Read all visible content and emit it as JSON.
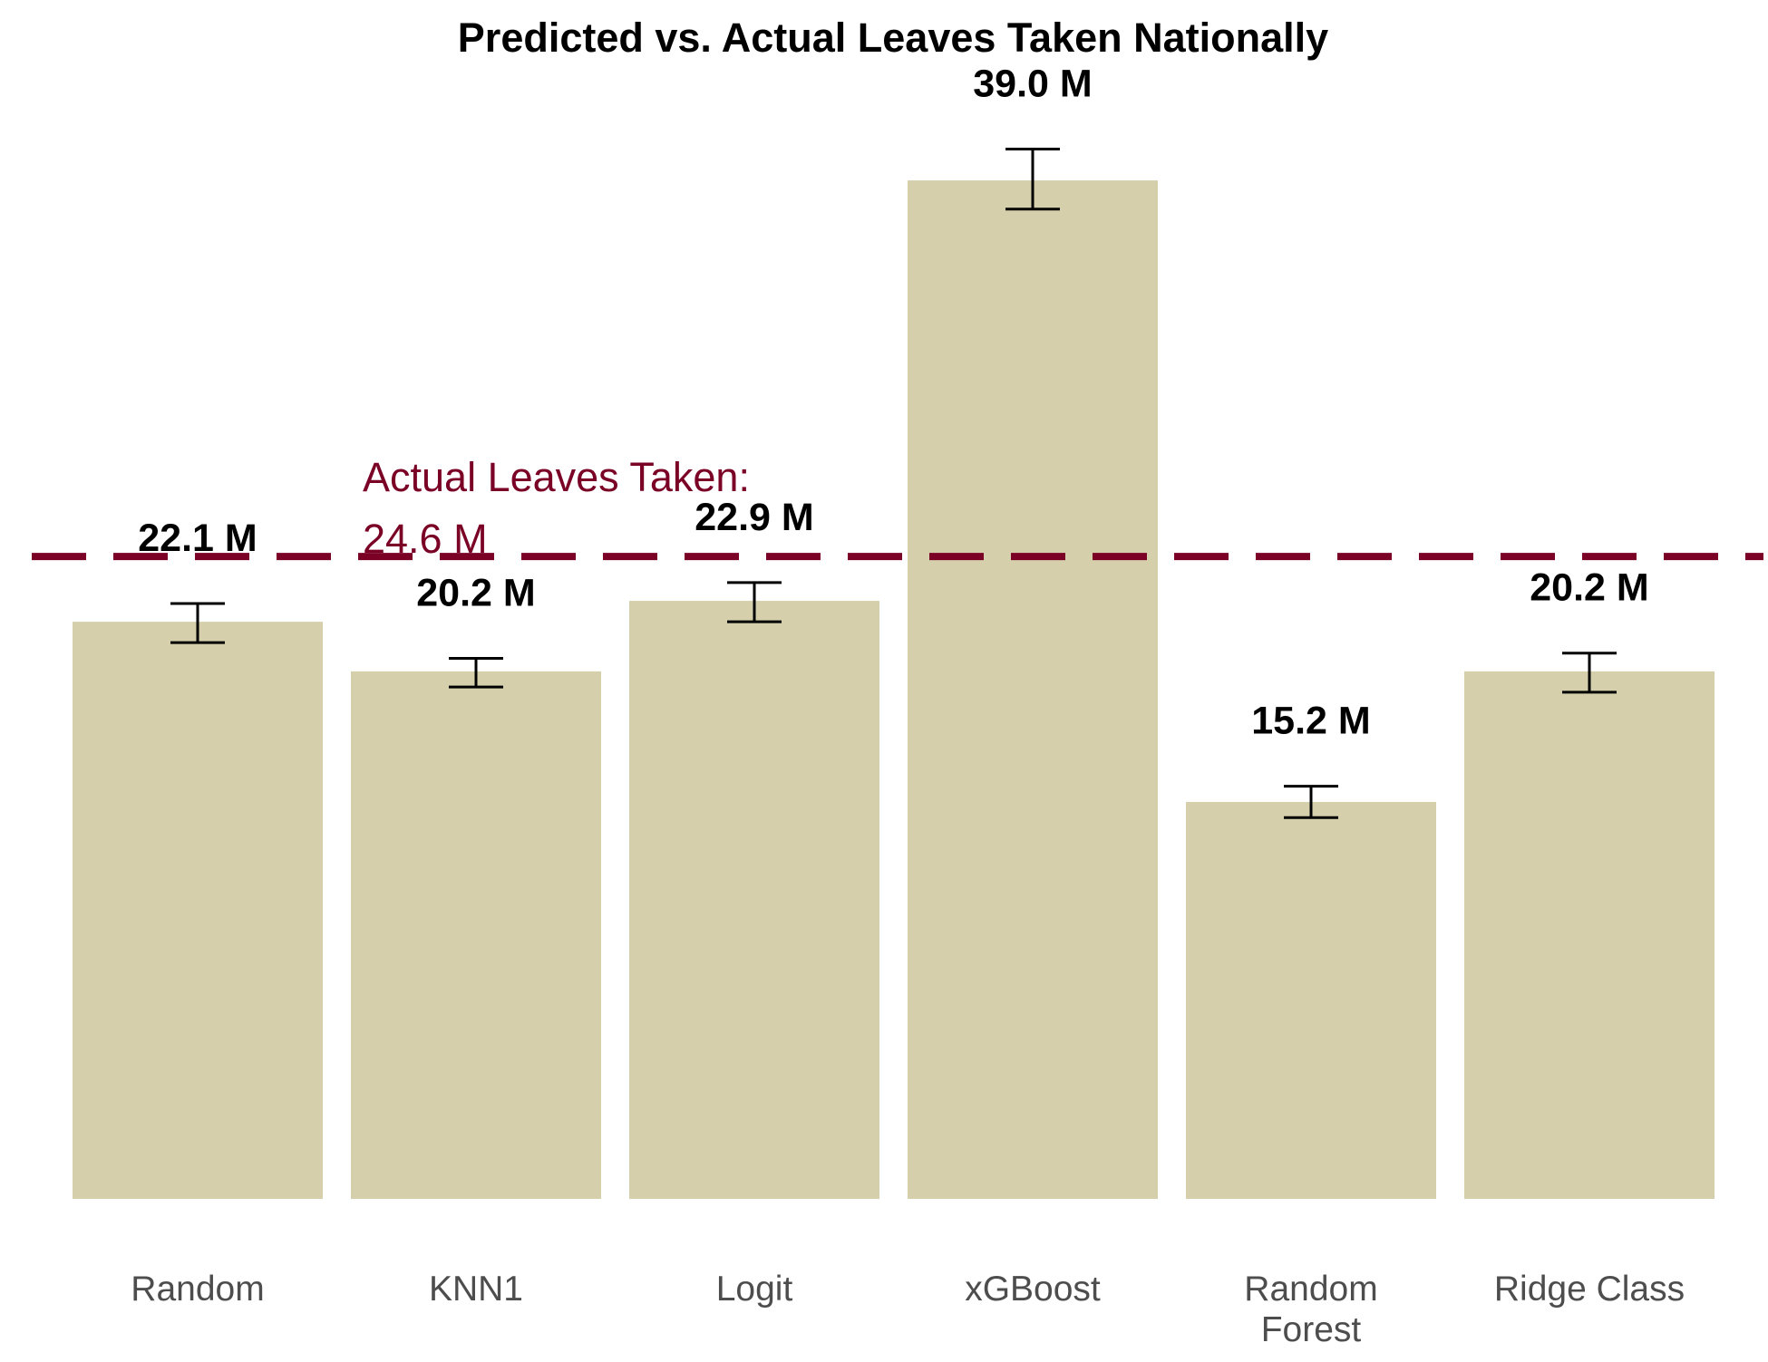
{
  "chart_data": {
    "type": "bar",
    "title": "Predicted vs. Actual Leaves Taken Nationally",
    "xlabel": "",
    "ylabel": "",
    "categories": [
      [
        "Random"
      ],
      [
        "KNN1"
      ],
      [
        "Logit"
      ],
      [
        "xGBoost"
      ],
      [
        "Random",
        "Forest"
      ],
      [
        "Ridge Class"
      ]
    ],
    "values": [
      22.1,
      20.2,
      22.9,
      39.0,
      15.2,
      20.2
    ],
    "value_labels": [
      "22.1 M",
      "20.2 M",
      "22.9 M",
      "39.0 M",
      "15.2 M",
      "20.2 M"
    ],
    "error_low": [
      21.3,
      19.6,
      22.1,
      37.9,
      14.6,
      19.4
    ],
    "error_high": [
      22.8,
      20.7,
      23.6,
      40.2,
      15.8,
      20.9
    ],
    "ylim": [
      0,
      44
    ],
    "grid": false,
    "reference_line": {
      "value": 24.6,
      "label_line1": "Actual Leaves Taken:",
      "label_line2": "24.6 M",
      "style": "dashed"
    },
    "colors": {
      "bar": "#d5cfab",
      "reference": "#7a0025",
      "error_bar": "#000000"
    }
  }
}
